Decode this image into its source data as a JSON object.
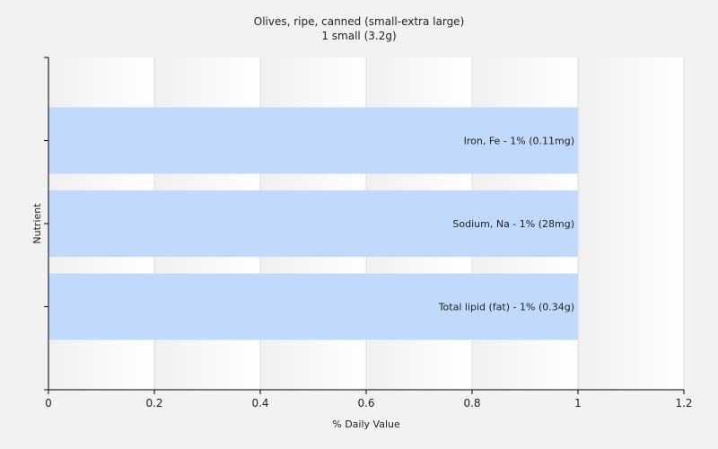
{
  "chart_data": {
    "type": "bar",
    "orientation": "horizontal",
    "title": "Olives, ripe, canned (small-extra large)",
    "subtitle": "1 small (3.2g)",
    "xlabel": "% Daily Value",
    "ylabel": "Nutrient",
    "xlim": [
      0,
      1.2
    ],
    "xticks": [
      "0",
      "0.2",
      "0.4",
      "0.6",
      "0.8",
      "1",
      "1.2"
    ],
    "grid": true,
    "bar_color": "#c0d9fc",
    "categories": [
      "Iron, Fe",
      "Sodium, Na",
      "Total lipid (fat)"
    ],
    "values": [
      1,
      1,
      1
    ],
    "bar_labels": [
      "Iron, Fe - 1% (0.11mg)",
      "Sodium, Na - 1% (28mg)",
      "Total lipid (fat) - 1% (0.34g)"
    ]
  }
}
